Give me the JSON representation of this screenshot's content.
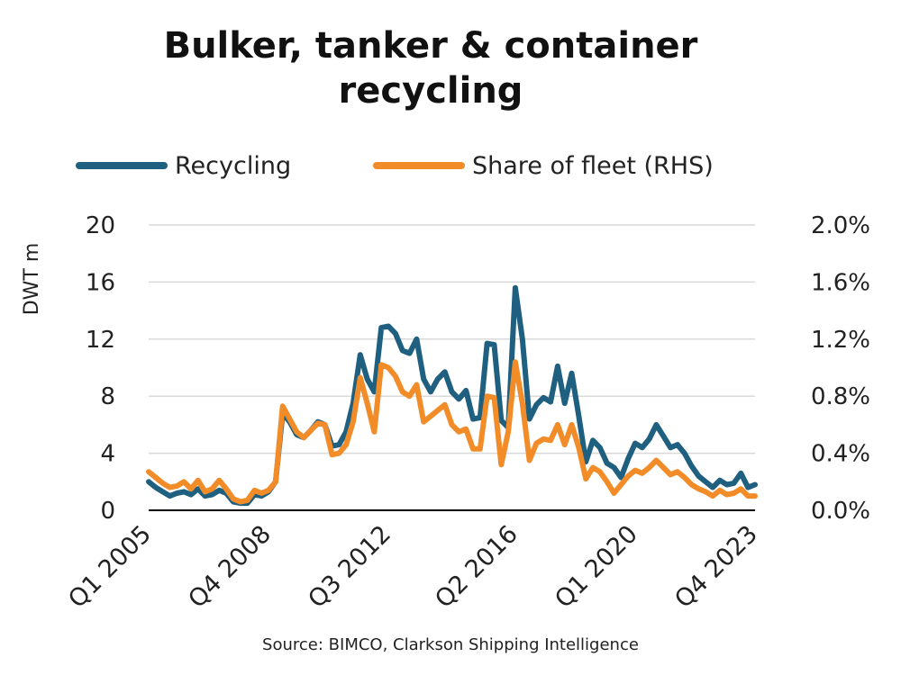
{
  "chart_data": {
    "type": "line",
    "title_lines": [
      "Bulker, tanker & container",
      "recycling"
    ],
    "ylabel": "DWT m",
    "ylim": [
      0,
      20
    ],
    "y_ticks": [
      0,
      4,
      8,
      12,
      16,
      20
    ],
    "y_ticks_label": [
      "0",
      "4",
      "8",
      "12",
      "16",
      "20"
    ],
    "y2lim": [
      0,
      2.0
    ],
    "y2_ticks_label": [
      "0.0%",
      "0.4%",
      "0.8%",
      "1.2%",
      "1.6%",
      "2.0%"
    ],
    "x_ticks": [
      "Q1 2005",
      "Q4 2008",
      "Q3 2012",
      "Q2 2016",
      "Q1 2020",
      "Q4 2023"
    ],
    "legend_position": "top",
    "source": "Source: BIMCO, Clarkson Shipping Intelligence",
    "colors": {
      "recycling": "#1f5f7f",
      "share": "#f28c28",
      "grid": "#d9d9d9",
      "axis": "#000000"
    },
    "series": [
      {
        "name": "Recycling",
        "axis": "left",
        "values": [
          2.0,
          1.6,
          1.3,
          1.0,
          1.2,
          1.3,
          1.1,
          1.5,
          1.0,
          1.1,
          1.4,
          1.2,
          0.6,
          0.5,
          0.5,
          1.1,
          1.0,
          1.3,
          2.0,
          6.8,
          6.2,
          5.3,
          5.1,
          5.6,
          6.2,
          6.0,
          4.5,
          4.6,
          5.5,
          7.5,
          10.9,
          9.2,
          8.3,
          12.8,
          12.9,
          12.4,
          11.2,
          11.0,
          12.0,
          9.2,
          8.3,
          9.2,
          9.7,
          8.3,
          7.8,
          8.4,
          6.4,
          6.5,
          11.7,
          11.6,
          6.3,
          5.8,
          15.6,
          12.0,
          6.4,
          7.4,
          7.9,
          7.6,
          10.1,
          7.5,
          9.6,
          6.6,
          3.4,
          4.9,
          4.4,
          3.3,
          3.0,
          2.3,
          3.6,
          4.7,
          4.4,
          5.0,
          6.0,
          5.2,
          4.4,
          4.6,
          4.0,
          3.1,
          2.4,
          2.0,
          1.6,
          2.1,
          1.8,
          1.9,
          2.6,
          1.6,
          1.8
        ]
      },
      {
        "name": "Share of fleet (RHS)",
        "axis": "right",
        "values": [
          0.27,
          0.23,
          0.19,
          0.16,
          0.17,
          0.2,
          0.15,
          0.21,
          0.13,
          0.15,
          0.21,
          0.15,
          0.08,
          0.06,
          0.07,
          0.14,
          0.12,
          0.14,
          0.2,
          0.73,
          0.64,
          0.55,
          0.51,
          0.56,
          0.61,
          0.6,
          0.39,
          0.4,
          0.46,
          0.62,
          0.93,
          0.75,
          0.55,
          1.02,
          1.0,
          0.94,
          0.83,
          0.8,
          0.88,
          0.62,
          0.66,
          0.7,
          0.74,
          0.6,
          0.55,
          0.57,
          0.43,
          0.43,
          0.8,
          0.79,
          0.32,
          0.55,
          1.04,
          0.75,
          0.35,
          0.47,
          0.5,
          0.49,
          0.6,
          0.46,
          0.6,
          0.44,
          0.22,
          0.3,
          0.27,
          0.2,
          0.12,
          0.18,
          0.24,
          0.28,
          0.26,
          0.3,
          0.35,
          0.3,
          0.25,
          0.27,
          0.23,
          0.18,
          0.15,
          0.13,
          0.1,
          0.14,
          0.11,
          0.12,
          0.15,
          0.1,
          0.1
        ]
      }
    ]
  }
}
